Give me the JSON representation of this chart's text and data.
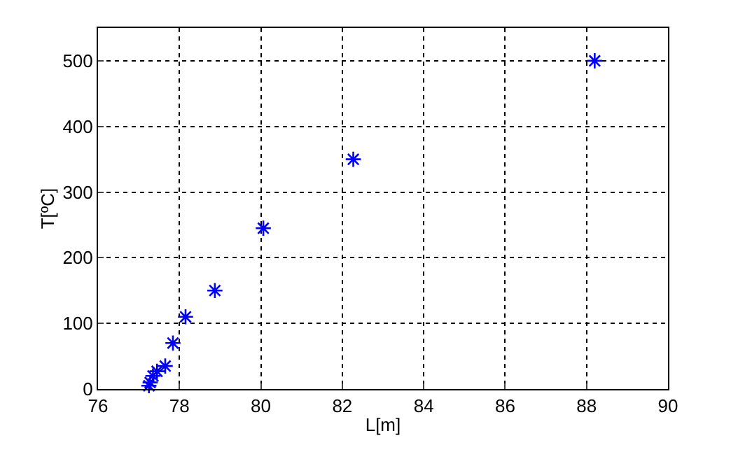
{
  "chart_data": {
    "type": "scatter",
    "xlabel": "L[m]",
    "ylabel": "T[ºC]",
    "x": [
      77.25,
      77.28,
      77.35,
      77.45,
      77.65,
      77.84,
      78.15,
      78.87,
      80.06,
      82.27,
      88.2
    ],
    "series": [
      {
        "color": "#0000ff",
        "values": [
          5,
          10,
          20,
          27,
          35,
          70,
          110,
          150,
          245,
          350,
          500
        ]
      }
    ],
    "marker": "cross",
    "grid": true,
    "legend": false,
    "xlim": [
      76,
      90
    ],
    "xticks": [
      76,
      78,
      80,
      82,
      84,
      86,
      88,
      90
    ],
    "ylim": [
      0,
      550
    ],
    "yticks": [
      0,
      100,
      200,
      300,
      400,
      500
    ]
  }
}
